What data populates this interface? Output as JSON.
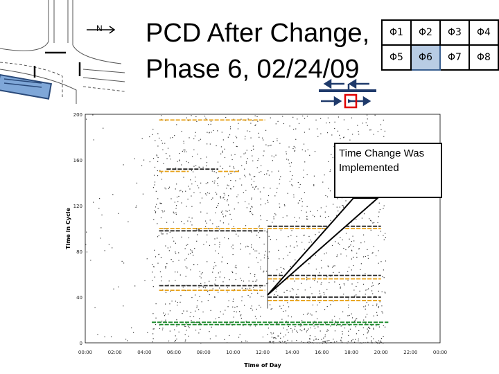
{
  "slide": {
    "title_line1": "PCD After Change,",
    "title_line2": "Phase 6, 02/24/09",
    "north_label": "N",
    "callout_text": "Time Change Was Implemented"
  },
  "phase_table": {
    "row1": [
      "Φ1",
      "Φ2",
      "Φ3",
      "Φ4"
    ],
    "row2": [
      "Φ5",
      "Φ6",
      "Φ7",
      "Φ8"
    ],
    "highlighted": "Φ6",
    "highlight_color": "#b8cce4"
  },
  "chart_data": {
    "type": "scatter",
    "xlabel": "Time of Day",
    "ylabel": "Time in Cycle",
    "x_ticks": [
      "00:00",
      "02:00",
      "04:00",
      "06:00",
      "08:00",
      "10:00",
      "12:00",
      "14:00",
      "16:00",
      "18:00",
      "20:00",
      "22:00",
      "00:00"
    ],
    "y_ticks": [
      "0",
      "40",
      "80",
      "120",
      "160",
      "200"
    ],
    "xlim": [
      "00:00",
      "24:00"
    ],
    "ylim": [
      0,
      200
    ],
    "change_time": "12:20",
    "series": [
      {
        "color": "#e8a21a",
        "segments": [
          {
            "from": "05:00",
            "to": "12:10",
            "y": 195
          },
          {
            "from": "05:00",
            "to": "07:00",
            "y": 150
          },
          {
            "from": "09:00",
            "to": "10:30",
            "y": 150
          },
          {
            "from": "05:00",
            "to": "12:10",
            "y": 100
          },
          {
            "from": "05:00",
            "to": "12:10",
            "y": 46
          },
          {
            "from": "12:20",
            "to": "20:00",
            "y": 100
          },
          {
            "from": "12:20",
            "to": "20:00",
            "y": 56
          },
          {
            "from": "12:20",
            "to": "20:00",
            "y": 37
          }
        ]
      },
      {
        "color": "#222222",
        "segments": [
          {
            "from": "05:30",
            "to": "09:00",
            "y": 152
          },
          {
            "from": "05:00",
            "to": "12:10",
            "y": 98
          },
          {
            "from": "05:00",
            "to": "12:10",
            "y": 50
          },
          {
            "from": "12:20",
            "to": "20:00",
            "y": 102
          },
          {
            "from": "12:20",
            "to": "20:00",
            "y": 59
          },
          {
            "from": "12:20",
            "to": "20:00",
            "y": 40
          }
        ]
      },
      {
        "color": "#1a8a2a",
        "segments": [
          {
            "from": "04:30",
            "to": "20:30",
            "y": 18
          },
          {
            "from": "05:00",
            "to": "20:00",
            "y": 16
          }
        ]
      }
    ]
  }
}
